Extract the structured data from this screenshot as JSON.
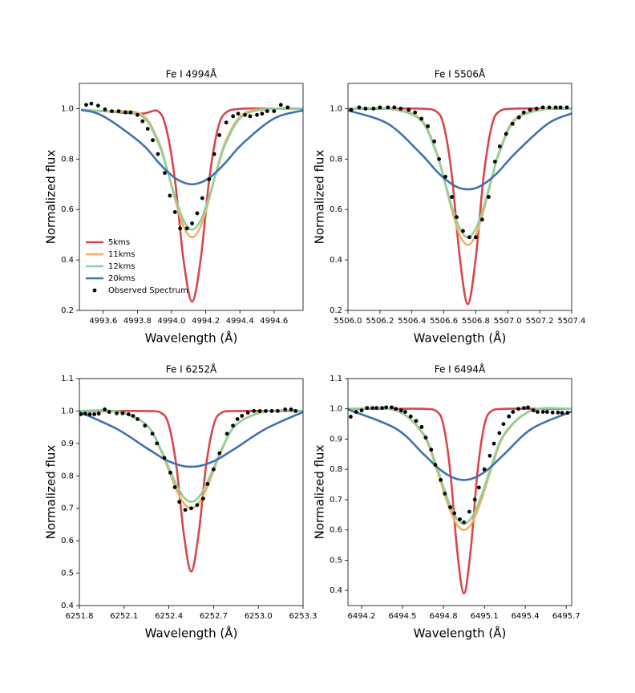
{
  "chart_data": [
    {
      "type": "line",
      "title": "Fe I 4994Å",
      "xlabel": "Wavelength (Å)",
      "ylabel": "Normalized flux",
      "legend": "lower left",
      "xlim": [
        4993.46,
        4994.77
      ],
      "ylim": [
        0.2,
        1.1
      ],
      "xticks": [
        4993.6,
        4993.8,
        {
          "value": 4994,
          "label": "4994.0"
        },
        4994.2,
        4994.4,
        4994.6
      ],
      "yticks": [
        0.2,
        0.4,
        0.6,
        0.8,
        {
          "value": 1,
          "label": "1.0"
        }
      ],
      "x": [
        4993.47,
        4993.6,
        4993.82,
        4993.92,
        4993.97,
        4994.02,
        4994.07,
        4994.12,
        4994.17,
        4994.22,
        4994.27,
        4994.32,
        4994.42,
        4994.6,
        4994.77
      ],
      "series": [
        {
          "name": "5kms",
          "color": "#d8464a",
          "kind": "line",
          "values": [
            0.995,
            0.99,
            0.98,
            0.99,
            0.918,
            0.716,
            0.4,
            0.235,
            0.4,
            0.716,
            0.918,
            0.985,
            1.0,
            1.0,
            1.0
          ]
        },
        {
          "name": "11kms",
          "color": "#f5b062",
          "kind": "line",
          "values": [
            0.995,
            0.99,
            0.979,
            0.876,
            0.77,
            0.642,
            0.533,
            0.49,
            0.533,
            0.642,
            0.77,
            0.876,
            0.979,
            1.0,
            1.0
          ]
        },
        {
          "name": "12kms",
          "color": "#8ecf9d",
          "kind": "line",
          "values": [
            0.995,
            0.99,
            0.973,
            0.867,
            0.766,
            0.651,
            0.557,
            0.52,
            0.557,
            0.651,
            0.766,
            0.867,
            0.973,
            1.0,
            1.0
          ]
        },
        {
          "name": "20kms",
          "color": "#3e72b0",
          "kind": "line",
          "values": [
            0.995,
            0.97,
            0.864,
            0.789,
            0.754,
            0.725,
            0.707,
            0.7,
            0.707,
            0.725,
            0.754,
            0.789,
            0.864,
            0.961,
            0.993
          ]
        },
        {
          "name": "Observed Spectrum",
          "color": "#000000",
          "kind": "scatter",
          "x": [
            4993.5,
            4993.53,
            4993.57,
            4993.61,
            4993.65,
            4993.69,
            4993.73,
            4993.76,
            4993.8,
            4993.83,
            4993.86,
            4993.89,
            4993.92,
            4993.96,
            4993.99,
            4994.02,
            4994.05,
            4994.09,
            4994.12,
            4994.15,
            4994.18,
            4994.22,
            4994.25,
            4994.28,
            4994.32,
            4994.36,
            4994.39,
            4994.43,
            4994.46,
            4994.5,
            4994.53,
            4994.56,
            4994.6,
            4994.64,
            4994.68
          ],
          "values": [
            1.015,
            1.02,
            1.012,
            0.997,
            0.99,
            0.99,
            0.985,
            0.985,
            0.975,
            0.95,
            0.92,
            0.875,
            0.82,
            0.745,
            0.655,
            0.59,
            0.525,
            0.525,
            0.545,
            0.585,
            0.645,
            0.72,
            0.82,
            0.895,
            0.945,
            0.97,
            0.98,
            0.975,
            0.97,
            0.975,
            0.98,
            0.99,
            0.99,
            1.015,
            1.005
          ]
        }
      ]
    },
    {
      "type": "line",
      "title": "Fe I 5506Å",
      "xlabel": "Wavelength (Å)",
      "ylabel": "Normalized flux",
      "xlim": [
        5506.0,
        5507.4
      ],
      "ylim": [
        0.2,
        1.1
      ],
      "xticks": [
        {
          "value": 5506,
          "label": "5506.0"
        },
        5506.2,
        5506.4,
        5506.6,
        5506.8,
        {
          "value": 5507,
          "label": "5507.0"
        },
        5507.2,
        5507.4
      ],
      "yticks": [
        0.2,
        0.4,
        0.6,
        0.8,
        {
          "value": 1,
          "label": "1.0"
        }
      ],
      "x": [
        5506.0,
        5506.25,
        5506.45,
        5506.55,
        5506.6,
        5506.65,
        5506.7,
        5506.75,
        5506.8,
        5506.85,
        5506.9,
        5506.95,
        5507.05,
        5507.25,
        5507.4
      ],
      "series": [
        {
          "color": "#d8464a",
          "kind": "line",
          "values": [
            1.0,
            1.0,
            1.0,
            0.99,
            0.932,
            0.736,
            0.409,
            0.225,
            0.409,
            0.736,
            0.932,
            0.99,
            1.0,
            1.0,
            1.0
          ]
        },
        {
          "color": "#f5b062",
          "kind": "line",
          "values": [
            1.0,
            1.0,
            0.962,
            0.835,
            0.722,
            0.598,
            0.498,
            0.46,
            0.498,
            0.598,
            0.722,
            0.835,
            0.962,
            1.0,
            1.0
          ]
        },
        {
          "color": "#8ecf9d",
          "kind": "line",
          "values": [
            1.0,
            1.0,
            0.957,
            0.83,
            0.725,
            0.612,
            0.524,
            0.49,
            0.524,
            0.612,
            0.725,
            0.83,
            0.957,
            1.0,
            1.0
          ]
        },
        {
          "color": "#3e72b0",
          "kind": "line",
          "values": [
            0.993,
            0.94,
            0.825,
            0.755,
            0.725,
            0.701,
            0.685,
            0.68,
            0.685,
            0.701,
            0.725,
            0.755,
            0.825,
            0.94,
            0.981
          ]
        },
        {
          "color": "#000000",
          "kind": "scatter",
          "x": [
            5506.02,
            5506.07,
            5506.11,
            5506.16,
            5506.2,
            5506.25,
            5506.29,
            5506.33,
            5506.38,
            5506.42,
            5506.46,
            5506.5,
            5506.54,
            5506.57,
            5506.61,
            5506.65,
            5506.68,
            5506.72,
            5506.76,
            5506.8,
            5506.84,
            5506.88,
            5506.92,
            5506.95,
            5506.99,
            5507.03,
            5507.07,
            5507.1,
            5507.14,
            5507.18,
            5507.22,
            5507.26,
            5507.3,
            5507.33,
            5507.37
          ],
          "values": [
            0.995,
            1.005,
            1.0,
            1.0,
            1.005,
            1.005,
            1.005,
            1.0,
            0.995,
            0.985,
            0.96,
            0.93,
            0.87,
            0.8,
            0.73,
            0.65,
            0.57,
            0.515,
            0.49,
            0.49,
            0.56,
            0.65,
            0.79,
            0.85,
            0.9,
            0.94,
            0.965,
            0.985,
            0.995,
            1.0,
            1.005,
            1.005,
            1.005,
            1.005,
            1.005
          ]
        }
      ]
    },
    {
      "type": "line",
      "title": "Fe I 6252Å",
      "xlabel": "Wavelength (Å)",
      "ylabel": "Normalized flux",
      "xlim": [
        6251.8,
        6253.3
      ],
      "ylim": [
        0.4,
        1.1
      ],
      "xticks": [
        6251.8,
        6252.1,
        6252.4,
        6252.7,
        {
          "value": 6253,
          "label": "6253.0"
        },
        6253.3
      ],
      "yticks": [
        0.4,
        0.5,
        0.6,
        0.7,
        0.8,
        0.9,
        {
          "value": 1,
          "label": "1.0"
        },
        1.1
      ],
      "x": [
        6251.8,
        6252.05,
        6252.25,
        6252.35,
        6252.4,
        6252.45,
        6252.5,
        6252.55,
        6252.6,
        6252.65,
        6252.7,
        6252.75,
        6252.85,
        6253.05,
        6253.3
      ],
      "series": [
        {
          "color": "#d8464a",
          "kind": "line",
          "values": [
            1.0,
            1.0,
            1.0,
            0.994,
            0.956,
            0.832,
            0.622,
            0.505,
            0.622,
            0.832,
            0.956,
            0.994,
            1.0,
            1.0,
            1.0
          ]
        },
        {
          "color": "#f5b062",
          "kind": "line",
          "values": [
            1.0,
            0.999,
            0.957,
            0.874,
            0.816,
            0.758,
            0.716,
            0.7,
            0.716,
            0.758,
            0.816,
            0.874,
            0.957,
            0.999,
            1.0
          ]
        },
        {
          "color": "#8ecf9d",
          "kind": "line",
          "values": [
            1.0,
            0.999,
            0.957,
            0.878,
            0.825,
            0.773,
            0.734,
            0.72,
            0.734,
            0.773,
            0.825,
            0.878,
            0.957,
            0.999,
            1.0
          ]
        },
        {
          "color": "#3e72b0",
          "kind": "line",
          "values": [
            0.997,
            0.945,
            0.886,
            0.857,
            0.845,
            0.836,
            0.83,
            0.828,
            0.83,
            0.836,
            0.845,
            0.857,
            0.886,
            0.945,
            0.997
          ]
        },
        {
          "color": "#000000",
          "kind": "scatter",
          "x": [
            6251.81,
            6251.84,
            6251.87,
            6251.9,
            6251.93,
            6251.97,
            6252.0,
            6252.05,
            6252.09,
            6252.13,
            6252.16,
            6252.19,
            6252.24,
            6252.29,
            6252.32,
            6252.37,
            6252.41,
            6252.44,
            6252.47,
            6252.51,
            6252.55,
            6252.59,
            6252.63,
            6252.66,
            6252.7,
            6252.74,
            6252.79,
            6252.83,
            6252.86,
            6252.89,
            6252.93,
            6252.97,
            6253.01,
            6253.05,
            6253.09,
            6253.13,
            6253.18,
            6253.22,
            6253.25
          ],
          "values": [
            0.99,
            0.992,
            0.99,
            0.99,
            0.992,
            1.005,
            0.997,
            0.993,
            0.993,
            0.99,
            0.985,
            0.975,
            0.955,
            0.93,
            0.9,
            0.855,
            0.81,
            0.765,
            0.72,
            0.695,
            0.7,
            0.71,
            0.73,
            0.775,
            0.82,
            0.87,
            0.93,
            0.955,
            0.975,
            0.985,
            0.995,
            1.0,
            1.0,
            1.0,
            1.0,
            1.0,
            1.005,
            1.005,
            1.0
          ]
        }
      ]
    },
    {
      "type": "line",
      "title": "Fe I 6494Å",
      "xlabel": "Wavelength (Å)",
      "ylabel": "Normalized flux",
      "xlim": [
        6494.1,
        6495.74
      ],
      "ylim": [
        0.35,
        1.1
      ],
      "xticks": [
        6494.2,
        6494.5,
        6494.8,
        6495.1,
        6495.4,
        6495.7
      ],
      "yticks": [
        0.4,
        0.5,
        0.6,
        0.7,
        0.8,
        0.9,
        {
          "value": 1,
          "label": "1.0"
        },
        1.1
      ],
      "x": [
        6494.1,
        6494.45,
        6494.65,
        6494.75,
        6494.8,
        6494.85,
        6494.9,
        6494.95,
        6495.0,
        6495.05,
        6495.1,
        6495.15,
        6495.25,
        6495.45,
        6495.74
      ],
      "series": [
        {
          "color": "#d8464a",
          "kind": "line",
          "values": [
            1.0,
            1.0,
            1.0,
            0.992,
            0.946,
            0.793,
            0.535,
            0.39,
            0.535,
            0.793,
            0.946,
            0.992,
            1.0,
            1.0,
            1.0
          ]
        },
        {
          "color": "#f5b062",
          "kind": "line",
          "values": [
            1.0,
            0.995,
            0.916,
            0.8,
            0.729,
            0.664,
            0.617,
            0.6,
            0.617,
            0.664,
            0.729,
            0.8,
            0.916,
            0.995,
            1.0
          ]
        },
        {
          "color": "#8ecf9d",
          "kind": "line",
          "values": [
            1.0,
            0.995,
            0.92,
            0.81,
            0.742,
            0.68,
            0.636,
            0.62,
            0.636,
            0.68,
            0.742,
            0.81,
            0.92,
            0.995,
            1.0
          ]
        },
        {
          "color": "#3e72b0",
          "kind": "line",
          "values": [
            0.998,
            0.935,
            0.852,
            0.809,
            0.791,
            0.777,
            0.768,
            0.765,
            0.768,
            0.777,
            0.791,
            0.809,
            0.852,
            0.935,
            0.991
          ]
        },
        {
          "color": "#000000",
          "kind": "scatter",
          "x": [
            6494.12,
            6494.16,
            6494.2,
            6494.24,
            6494.28,
            6494.31,
            6494.35,
            6494.38,
            6494.42,
            6494.45,
            6494.49,
            6494.52,
            6494.56,
            6494.6,
            6494.64,
            6494.67,
            6494.71,
            6494.74,
            6494.78,
            6494.81,
            6494.85,
            6494.88,
            6494.92,
            6494.95,
            6494.99,
            6495.03,
            6495.06,
            6495.1,
            6495.14,
            6495.17,
            6495.21,
            6495.24,
            6495.28,
            6495.31,
            6495.35,
            6495.39,
            6495.42,
            6495.46,
            6495.49,
            6495.53,
            6495.56,
            6495.6,
            6495.64,
            6495.67,
            6495.71
          ],
          "values": [
            0.974,
            0.99,
            0.995,
            1.003,
            1.003,
            1.003,
            1.003,
            1.005,
            1.005,
            1.0,
            0.995,
            0.99,
            0.975,
            0.96,
            0.94,
            0.905,
            0.865,
            0.815,
            0.765,
            0.72,
            0.675,
            0.655,
            0.635,
            0.625,
            0.66,
            0.7,
            0.74,
            0.8,
            0.845,
            0.885,
            0.92,
            0.95,
            0.975,
            0.99,
            1.0,
            1.003,
            1.005,
            0.995,
            0.99,
            0.99,
            0.99,
            0.988,
            0.988,
            0.987,
            0.987
          ]
        }
      ]
    }
  ]
}
